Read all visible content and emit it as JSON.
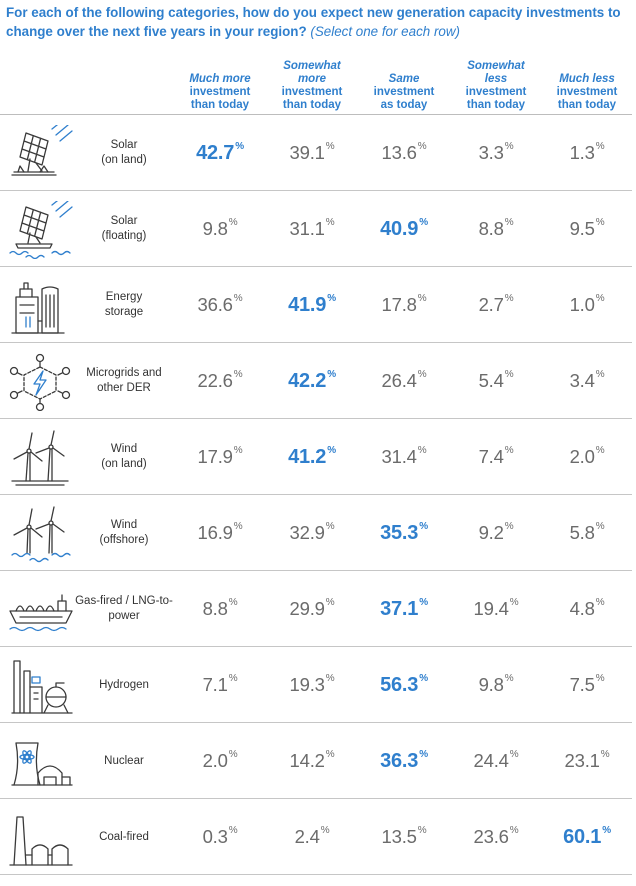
{
  "question": {
    "text": "For each of the following categories, how do you expect new generation capacity investments to change over the next five years in your region?",
    "instruction": "(Select one for each row)"
  },
  "columns": [
    {
      "id": "much-more",
      "lines": [
        "Much more",
        "investment",
        "than today"
      ],
      "italic_lines": [
        0
      ]
    },
    {
      "id": "somewhat-more",
      "lines": [
        "Somewhat",
        "more",
        "investment",
        "than today"
      ],
      "italic_lines": [
        0,
        1
      ]
    },
    {
      "id": "same",
      "lines": [
        "Same",
        "investment",
        "as today"
      ],
      "italic_lines": [
        0
      ]
    },
    {
      "id": "somewhat-less",
      "lines": [
        "Somewhat",
        "less",
        "investment",
        "than today"
      ],
      "italic_lines": [
        0,
        1
      ]
    },
    {
      "id": "much-less",
      "lines": [
        "Much less",
        "investment",
        "than today"
      ],
      "italic_lines": [
        0
      ]
    }
  ],
  "unit": "%",
  "colors": {
    "accent": "#2f7fcd",
    "value": "#6b6b6b",
    "label": "#333333",
    "divider": "#c6c6c6"
  },
  "chart_data": {
    "type": "table",
    "title": "For each of the following categories, how do you expect new generation capacity investments to change over the next five years in your region?",
    "categories": [
      "Solar (on land)",
      "Solar (floating)",
      "Energy storage",
      "Microgrids and other DER",
      "Wind (on land)",
      "Wind (offshore)",
      "Gas-fired / LNG-to-power",
      "Hydrogen",
      "Nuclear",
      "Coal-fired"
    ],
    "rows": [
      {
        "label": [
          "Solar",
          "(on land)"
        ],
        "icon": "solar-panel-icon",
        "values": [
          "42.7",
          "39.1",
          "13.6",
          "3.3",
          "1.3"
        ],
        "highlight": 0
      },
      {
        "label": [
          "Solar",
          "(floating)"
        ],
        "icon": "floating-solar-icon",
        "values": [
          "9.8",
          "31.1",
          "40.9",
          "8.8",
          "9.5"
        ],
        "highlight": 2
      },
      {
        "label": [
          "Energy",
          "storage"
        ],
        "icon": "energy-storage-icon",
        "values": [
          "36.6",
          "41.9",
          "17.8",
          "2.7",
          "1.0"
        ],
        "highlight": 1
      },
      {
        "label": [
          "Microgrids and",
          "other DER"
        ],
        "icon": "microgrid-icon",
        "values": [
          "22.6",
          "42.2",
          "26.4",
          "5.4",
          "3.4"
        ],
        "highlight": 1
      },
      {
        "label": [
          "Wind",
          "(on land)"
        ],
        "icon": "wind-turbine-icon",
        "values": [
          "17.9",
          "41.2",
          "31.4",
          "7.4",
          "2.0"
        ],
        "highlight": 1
      },
      {
        "label": [
          "Wind",
          "(offshore)"
        ],
        "icon": "offshore-wind-icon",
        "values": [
          "16.9",
          "32.9",
          "35.3",
          "9.2",
          "5.8"
        ],
        "highlight": 2
      },
      {
        "label": [
          "Gas-fired / LNG-to-",
          "power"
        ],
        "icon": "lng-ship-icon",
        "values": [
          "8.8",
          "29.9",
          "37.1",
          "19.4",
          "4.8"
        ],
        "highlight": 2
      },
      {
        "label": [
          "Hydrogen"
        ],
        "icon": "hydrogen-plant-icon",
        "values": [
          "7.1",
          "19.3",
          "56.3",
          "9.8",
          "7.5"
        ],
        "highlight": 2
      },
      {
        "label": [
          "Nuclear"
        ],
        "icon": "nuclear-plant-icon",
        "values": [
          "2.0",
          "14.2",
          "36.3",
          "24.4",
          "23.1"
        ],
        "highlight": 2
      },
      {
        "label": [
          "Coal-fired"
        ],
        "icon": "coal-plant-icon",
        "values": [
          "0.3",
          "2.4",
          "13.5",
          "23.6",
          "60.1"
        ],
        "highlight": 4
      }
    ]
  }
}
